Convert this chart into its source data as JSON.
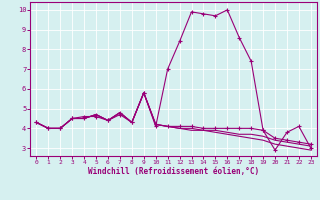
{
  "xlabel": "Windchill (Refroidissement éolien,°C)",
  "bg_color": "#d6f0f0",
  "line_color": "#990077",
  "grid_color": "#ffffff",
  "x_ticks": [
    0,
    1,
    2,
    3,
    4,
    5,
    6,
    7,
    8,
    9,
    10,
    11,
    12,
    13,
    14,
    15,
    16,
    17,
    18,
    19,
    20,
    21,
    22,
    23
  ],
  "y_ticks": [
    3,
    4,
    5,
    6,
    7,
    8,
    9,
    10
  ],
  "ylim": [
    2.6,
    10.4
  ],
  "xlim": [
    -0.5,
    23.5
  ],
  "series1": [
    4.3,
    4.0,
    4.0,
    4.5,
    4.6,
    4.6,
    4.4,
    4.7,
    4.3,
    5.8,
    4.1,
    7.0,
    8.4,
    9.9,
    9.8,
    9.7,
    10.0,
    8.6,
    7.4,
    3.9,
    2.9,
    3.8,
    4.1,
    3.0
  ],
  "series2": [
    4.3,
    4.0,
    4.0,
    4.5,
    4.5,
    4.7,
    4.4,
    4.8,
    4.3,
    5.8,
    4.2,
    4.1,
    4.1,
    4.1,
    4.0,
    4.0,
    4.0,
    4.0,
    4.0,
    3.9,
    3.5,
    3.4,
    3.3,
    3.2
  ],
  "series3": [
    4.3,
    4.0,
    4.0,
    4.5,
    4.5,
    4.7,
    4.4,
    4.8,
    4.3,
    5.8,
    4.2,
    4.1,
    4.0,
    4.0,
    3.9,
    3.9,
    3.8,
    3.7,
    3.7,
    3.6,
    3.4,
    3.3,
    3.2,
    3.1
  ],
  "series4": [
    4.3,
    4.0,
    4.0,
    4.5,
    4.5,
    4.7,
    4.4,
    4.8,
    4.3,
    5.8,
    4.2,
    4.1,
    4.0,
    3.9,
    3.9,
    3.8,
    3.7,
    3.6,
    3.5,
    3.4,
    3.2,
    3.1,
    3.0,
    2.9
  ]
}
